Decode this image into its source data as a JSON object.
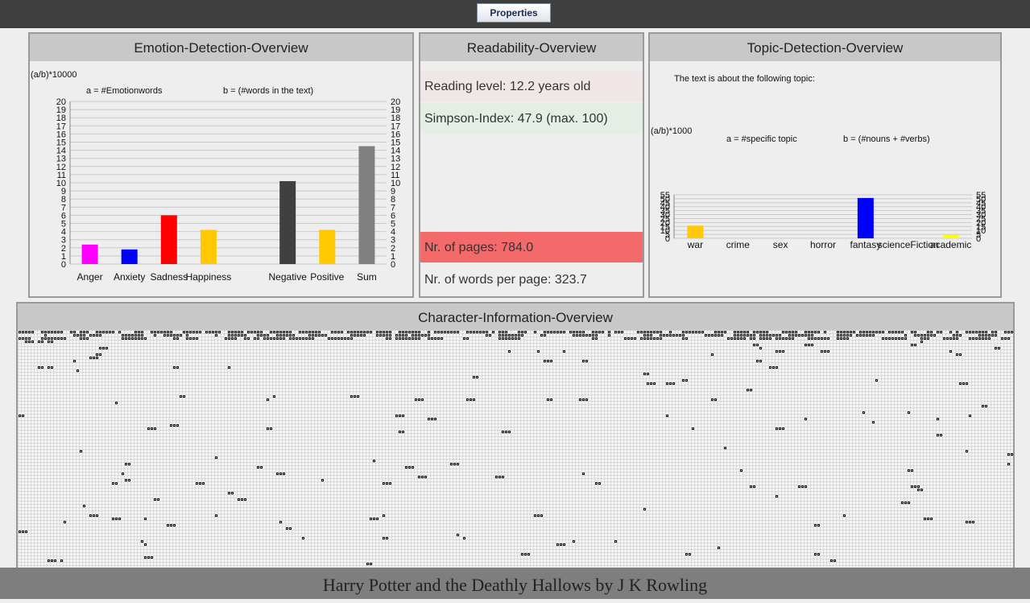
{
  "toolbar": {
    "properties_label": "Properties"
  },
  "emotion": {
    "title": "Emotion-Detection-Overview",
    "formula": "(a/b)*10000",
    "a_def": "a = #Emotionwords",
    "b_def": "b = (#words in the text)"
  },
  "readability": {
    "title": "Readability-Overview",
    "reading_level": "Reading level: 12.2 years old",
    "simpson": "Simpson-Index: 47.9 (max. 100)",
    "pages": "Nr. of pages: 784.0",
    "words_per_page": "Nr. of words per page: 323.7"
  },
  "topic": {
    "title": "Topic-Detection-Overview",
    "about": "The text is about the following topic:",
    "formula": "(a/b)*1000",
    "a_def": "a = #specific topic",
    "b_def": "b = (#nouns + #verbs)"
  },
  "character": {
    "title": "Character-Information-Overview"
  },
  "footer": {
    "book_title": "Harry Potter and the Deathly Hallows by J K Rowling"
  },
  "colors": {
    "reading_bg": "#f1e6e6",
    "simpson_bg": "#e5eee5",
    "pages_bg": "#f46a6a"
  },
  "chart_data": [
    {
      "type": "bar",
      "categories": [
        "Anger",
        "Anxiety",
        "Sadness",
        "Happiness",
        "",
        "Negative",
        "Positive",
        "Sum"
      ],
      "values": [
        2.4,
        1.8,
        6.0,
        4.2,
        0,
        10.2,
        4.2,
        14.5
      ],
      "colors": [
        "#ff00ff",
        "#0000ff",
        "#ff0000",
        "#ffc800",
        "#ffffff",
        "#404040",
        "#ffc800",
        "#808080"
      ],
      "ylim": [
        0,
        20
      ],
      "yticks": [
        0,
        1,
        2,
        3,
        4,
        5,
        6,
        7,
        8,
        9,
        10,
        11,
        12,
        13,
        14,
        15,
        16,
        17,
        18,
        19,
        20
      ],
      "grid": true,
      "axis_right": true
    },
    {
      "type": "bar",
      "categories": [
        "war",
        "crime",
        "sex",
        "horror",
        "fantasy",
        "scienceFiction",
        "academic"
      ],
      "values": [
        16,
        0,
        0,
        0,
        51,
        0,
        4
      ],
      "colors": [
        "#ffc800",
        "#ffc800",
        "#ffc800",
        "#ffc800",
        "#0000ff",
        "#ffc800",
        "#ffff00"
      ],
      "ylim": [
        0,
        55
      ],
      "yticks": [
        0,
        5,
        10,
        15,
        20,
        25,
        30,
        35,
        40,
        45,
        50,
        55
      ],
      "grid": true,
      "axis_right": true
    }
  ]
}
